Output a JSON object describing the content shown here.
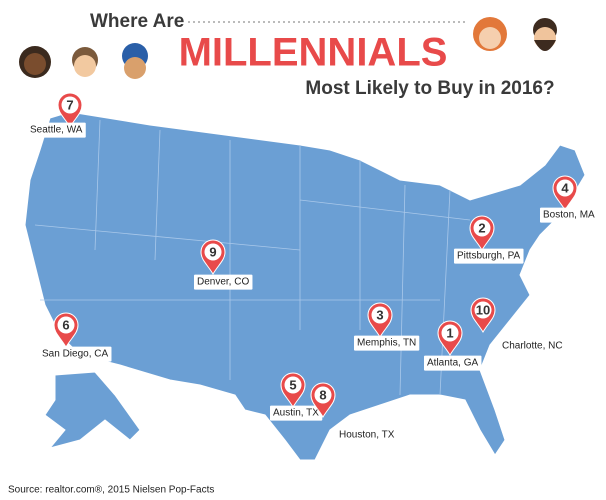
{
  "header": {
    "line1": "Where Are",
    "line2": "MILLENNIALS",
    "line3": "Most Likely to Buy in 2016?"
  },
  "pins": [
    {
      "rank": "7",
      "label": "Seattle, WA"
    },
    {
      "rank": "4",
      "label": "Boston, MA"
    },
    {
      "rank": "2",
      "label": "Pittsburgh, PA"
    },
    {
      "rank": "9",
      "label": "Denver, CO"
    },
    {
      "rank": "6",
      "label": "San Diego, CA"
    },
    {
      "rank": "3",
      "label": "Memphis, TN"
    },
    {
      "rank": "10",
      "label": "Charlotte, NC"
    },
    {
      "rank": "1",
      "label": "Atlanta, GA"
    },
    {
      "rank": "5",
      "label": "Austin, TX"
    },
    {
      "rank": "8",
      "label": "Houston, TX"
    }
  ],
  "source": "Source: realtor.com®, 2015 Nielsen Pop-Facts"
}
